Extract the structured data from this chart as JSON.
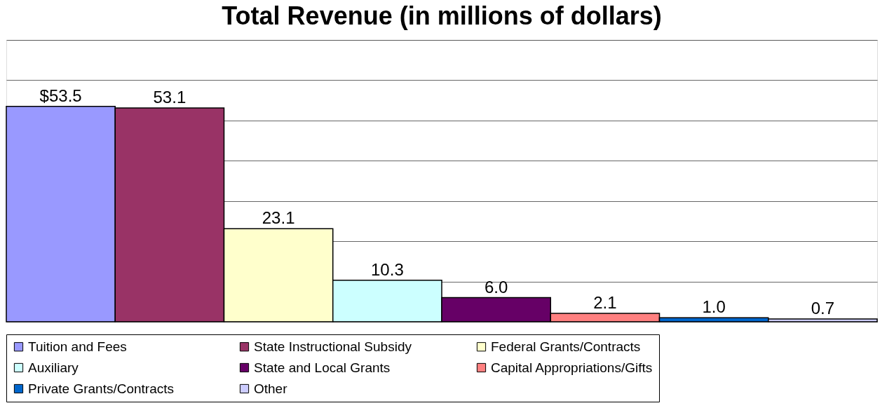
{
  "chart_data": {
    "type": "bar",
    "title": "Total Revenue (in millions of dollars)",
    "categories": [
      null
    ],
    "series": [
      {
        "name": "Tuition and Fees",
        "color": "#9999ff",
        "values": [
          53.5
        ],
        "value_labels": [
          "$53.5"
        ]
      },
      {
        "name": "State Instructional Subsidy",
        "color": "#993366",
        "values": [
          53.1
        ],
        "value_labels": [
          "53.1"
        ]
      },
      {
        "name": "Federal Grants/Contracts",
        "color": "#ffffcc",
        "values": [
          23.1
        ],
        "value_labels": [
          "23.1"
        ]
      },
      {
        "name": "Auxiliary",
        "color": "#ccffff",
        "values": [
          10.3
        ],
        "value_labels": [
          "10.3"
        ]
      },
      {
        "name": "State and Local Grants",
        "color": "#660066",
        "values": [
          6.0
        ],
        "value_labels": [
          "6.0"
        ]
      },
      {
        "name": "Capital Appropriations/Gifts",
        "color": "#ff8080",
        "values": [
          2.1
        ],
        "value_labels": [
          "2.1"
        ]
      },
      {
        "name": "Private Grants/Contracts",
        "color": "#0066cc",
        "values": [
          1.0
        ],
        "value_labels": [
          "1.0"
        ]
      },
      {
        "name": "Other",
        "color": "#ccccff",
        "values": [
          0.7
        ],
        "value_labels": [
          "0.7"
        ]
      }
    ],
    "ylim": [
      0,
      70
    ],
    "yticks": [
      {
        "value": 0,
        "label": null
      },
      {
        "value": 10,
        "label": null
      },
      {
        "value": 20,
        "label": null
      },
      {
        "value": 30,
        "label": null
      },
      {
        "value": 40,
        "label": null
      },
      {
        "value": 50,
        "label": null
      },
      {
        "value": 60,
        "label": null
      },
      {
        "value": 70,
        "label": null
      }
    ],
    "grid": "y",
    "legend": "bottom",
    "tick_labels": false
  }
}
